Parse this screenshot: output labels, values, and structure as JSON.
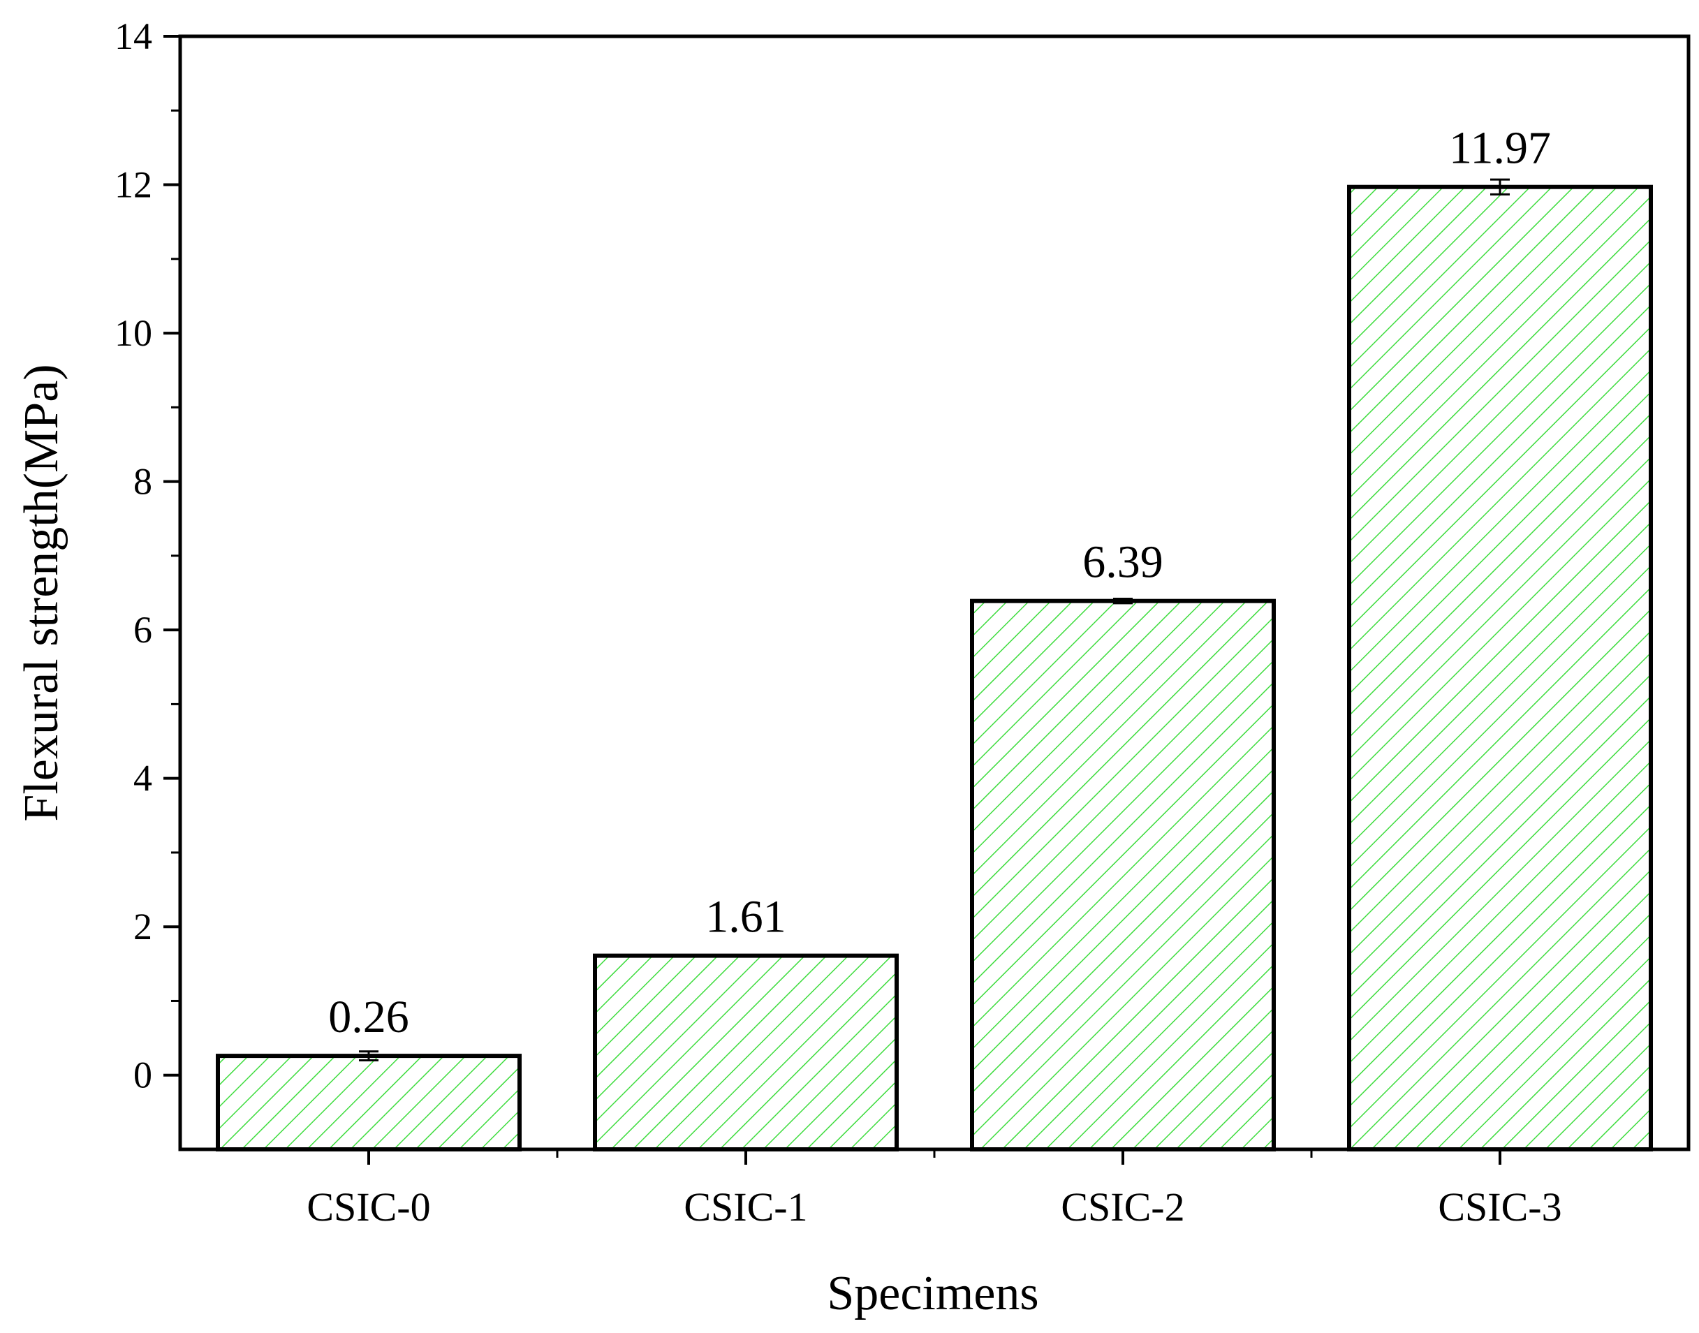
{
  "chart_data": {
    "type": "bar",
    "title": "",
    "xlabel": "Specimens",
    "ylabel": "Flexural strength(MPa)",
    "categories": [
      "CSIC-0",
      "CSIC-1",
      "CSIC-2",
      "CSIC-3"
    ],
    "values": [
      0.26,
      1.61,
      6.39,
      11.97
    ],
    "value_labels": [
      "0.26",
      "1.61",
      "6.39",
      "11.97"
    ],
    "error": [
      0.06,
      0.0,
      0.03,
      0.1
    ],
    "ylim": [
      -1,
      14
    ],
    "yticks": [
      0,
      2,
      4,
      6,
      8,
      10,
      12,
      14
    ],
    "ytick_labels": [
      "0",
      "2",
      "4",
      "6",
      "8",
      "10",
      "12",
      "14"
    ],
    "grid": false,
    "legend": "none",
    "colors": {
      "bar_hatch": "#3ddc3d",
      "bar_edge": "#000000",
      "axis": "#000000",
      "background": "#ffffff"
    }
  }
}
